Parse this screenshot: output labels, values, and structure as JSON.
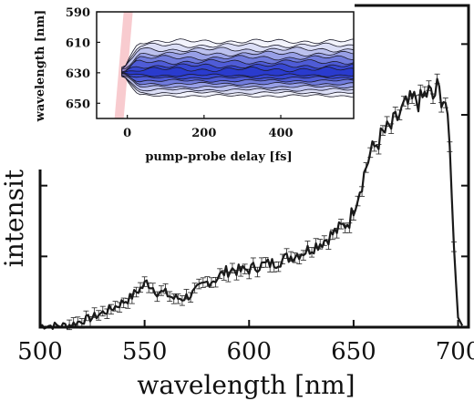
{
  "chart_data": [
    {
      "type": "line",
      "xlabel": "wavelength [nm]",
      "ylabel": "intensity [a.u.]",
      "xlim": [
        500,
        705
      ],
      "ylim": [
        0,
        1.0
      ],
      "xticks": [
        500,
        550,
        600,
        650,
        700
      ],
      "x_tick_labels": [
        "500",
        "550",
        "600",
        "650",
        "700"
      ],
      "yticks": [
        0.22,
        0.44,
        0.66,
        0.88
      ],
      "y_tick_labels_shown": false,
      "error_bars": true,
      "series": [
        {
          "x": [
            500,
            505,
            510,
            515,
            520,
            525,
            530,
            535,
            540,
            543,
            546,
            549,
            551,
            553,
            556,
            560,
            564,
            568,
            572,
            576,
            580,
            584,
            588,
            592,
            596,
            600,
            604,
            608,
            612,
            616,
            620,
            624,
            628,
            632,
            636,
            640,
            644,
            648,
            650,
            652,
            654,
            656,
            658,
            660,
            662,
            664,
            666,
            668,
            670,
            672,
            674,
            676,
            678,
            680,
            682,
            684,
            686,
            688,
            690,
            692,
            694,
            696,
            698,
            700,
            702
          ],
          "y": [
            0.005,
            0.005,
            0.005,
            0.008,
            0.02,
            0.03,
            0.045,
            0.06,
            0.08,
            0.09,
            0.11,
            0.125,
            0.14,
            0.13,
            0.11,
            0.105,
            0.09,
            0.09,
            0.1,
            0.12,
            0.14,
            0.15,
            0.17,
            0.18,
            0.175,
            0.18,
            0.19,
            0.195,
            0.2,
            0.21,
            0.22,
            0.23,
            0.24,
            0.255,
            0.27,
            0.29,
            0.31,
            0.33,
            0.37,
            0.41,
            0.45,
            0.5,
            0.54,
            0.56,
            0.58,
            0.6,
            0.61,
            0.62,
            0.64,
            0.66,
            0.68,
            0.69,
            0.7,
            0.71,
            0.7,
            0.72,
            0.73,
            0.71,
            0.74,
            0.72,
            0.7,
            0.55,
            0.25,
            0.03,
            0.005
          ],
          "err": 0.015
        }
      ]
    },
    {
      "type": "heatmap",
      "xlabel": "pump-probe delay [fs]",
      "ylabel": "wavelength [nm]",
      "xlim": [
        -80,
        590
      ],
      "ylim": [
        590,
        660
      ],
      "xticks": [
        0,
        200,
        400
      ],
      "x_tick_labels": [
        "0",
        "200",
        "400"
      ],
      "yticks": [
        590,
        610,
        630,
        650
      ],
      "y_tick_labels": [
        "590",
        "610",
        "630",
        "650"
      ],
      "y_inverted": true,
      "peak_wavelength": 630,
      "onset_delay": 0,
      "colors": {
        "low": "#ffffff",
        "high": "#2233cc",
        "pump": "#f2a0a8",
        "contour": "#1a1a2a"
      }
    }
  ]
}
